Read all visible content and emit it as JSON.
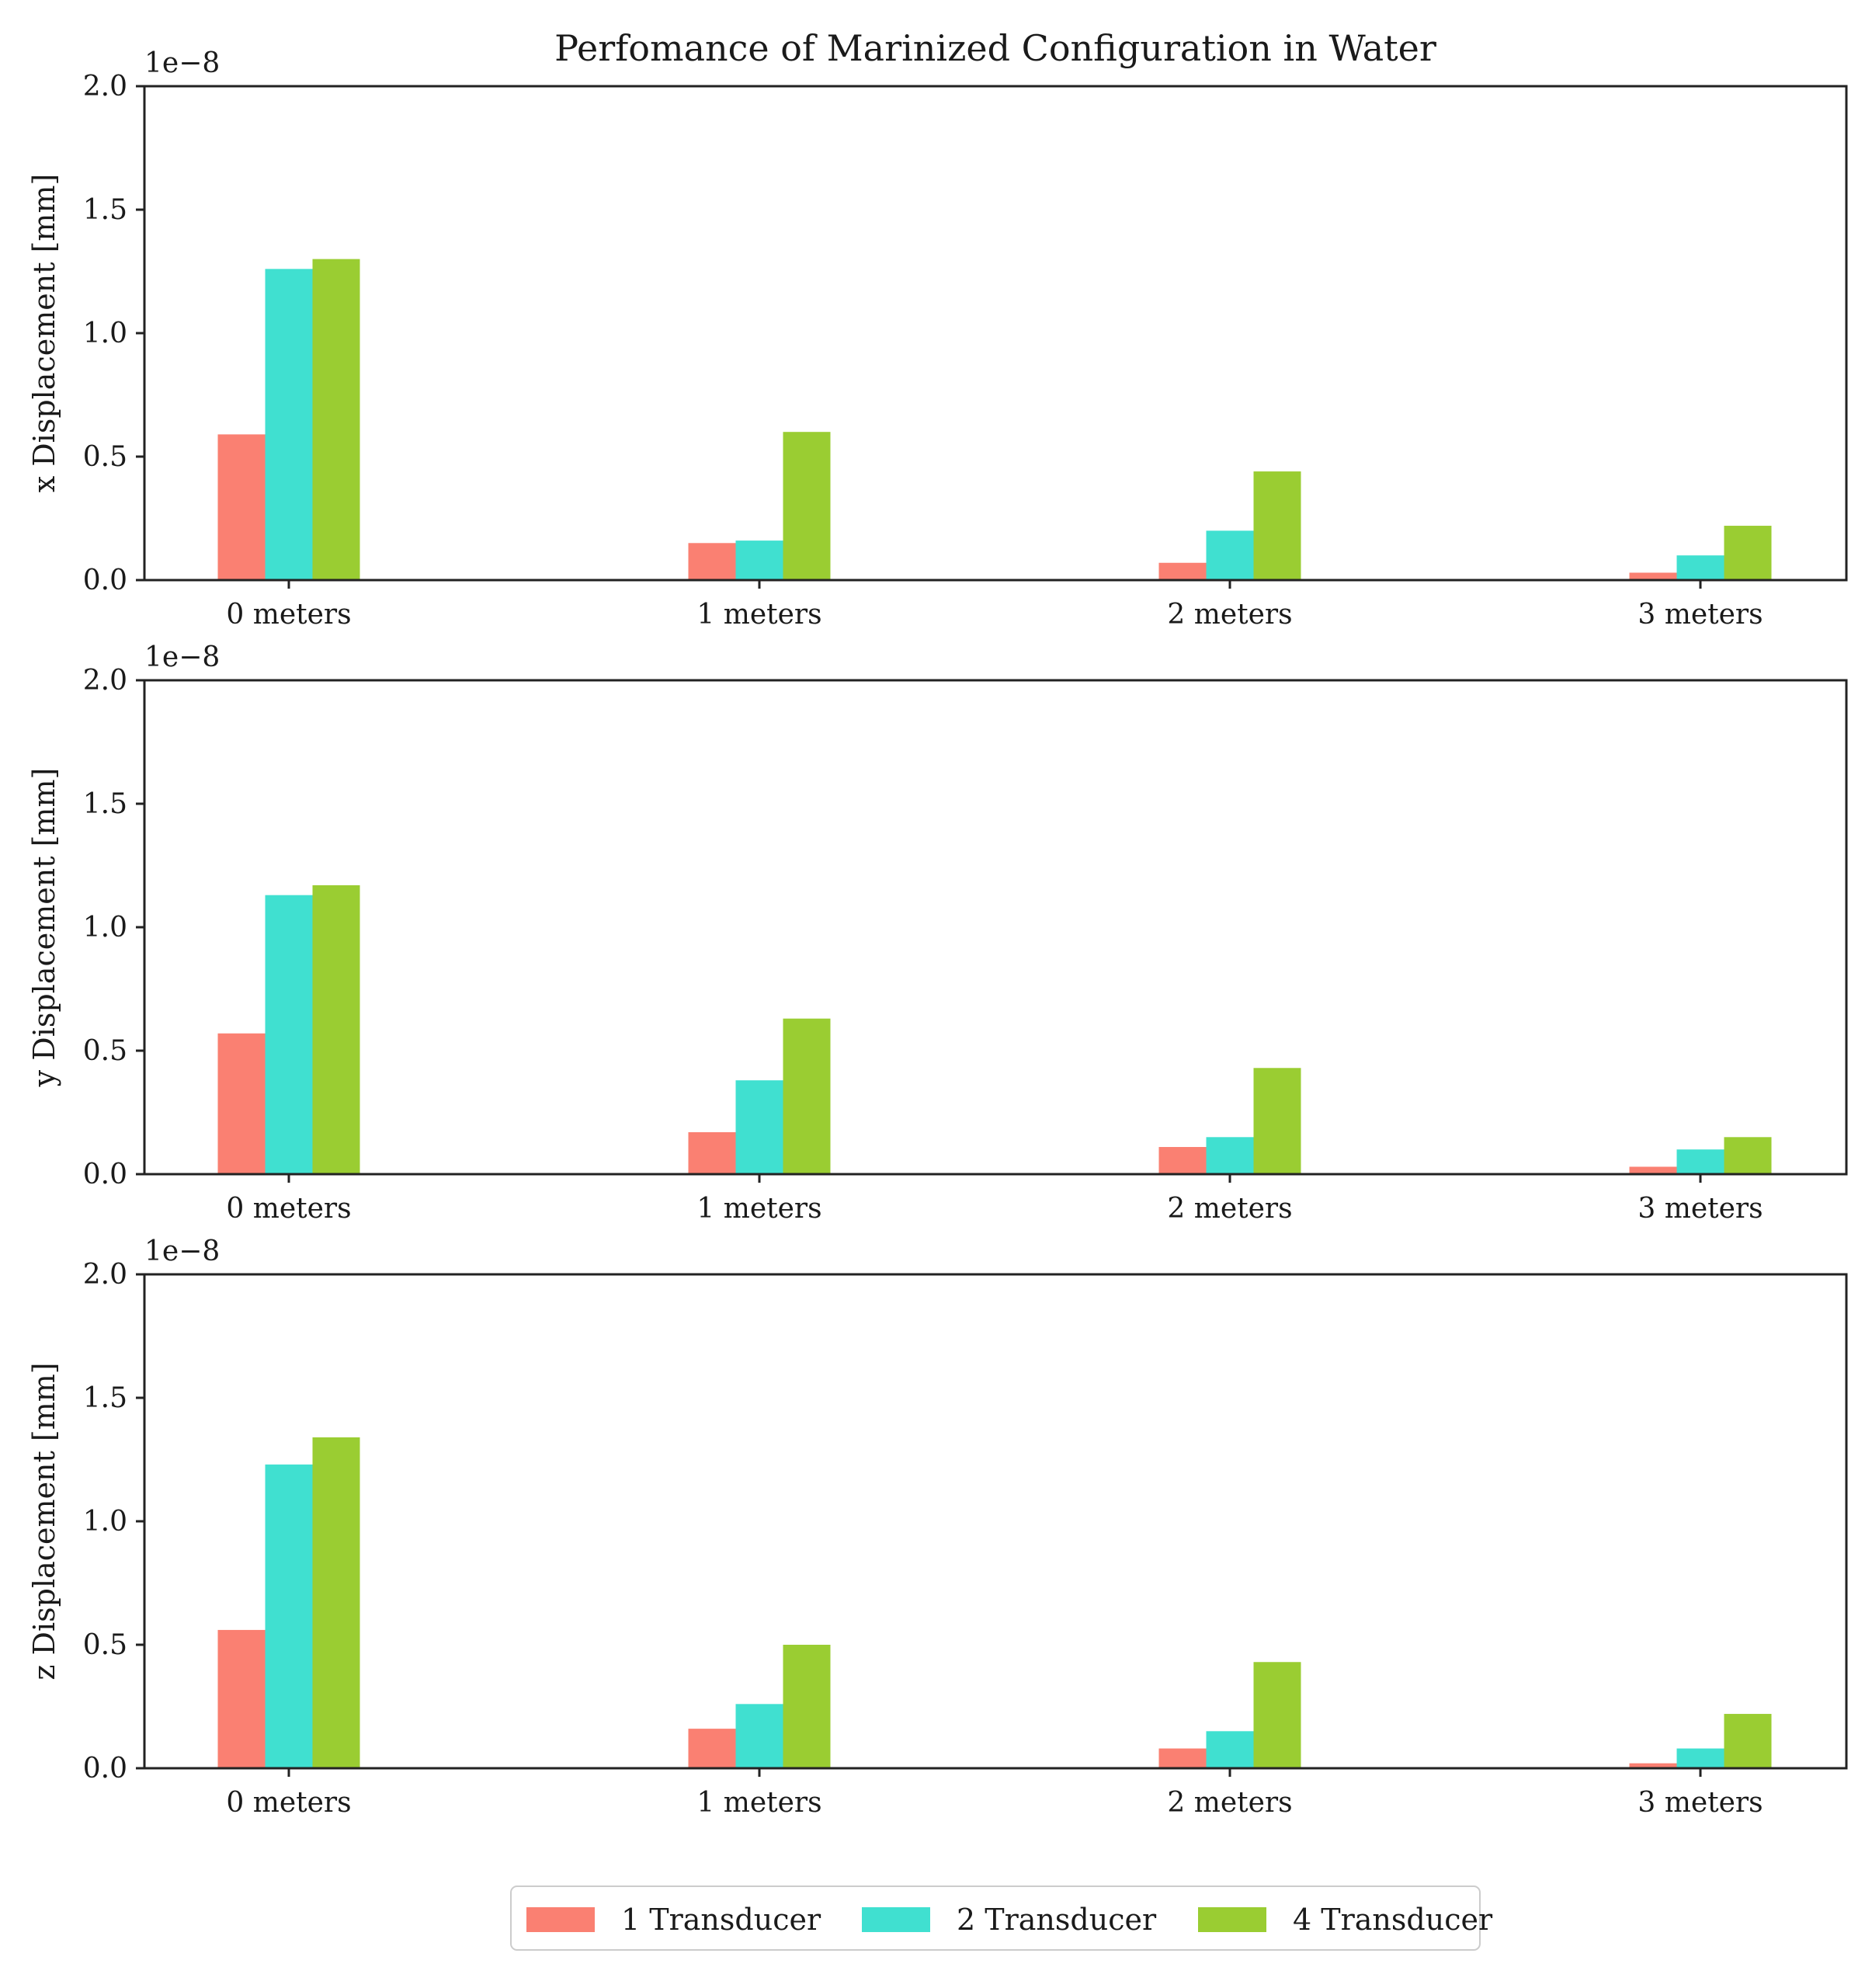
{
  "title": "Perfomance of Marinized Configuration in Water",
  "legend": {
    "location": "bottom-center",
    "entries": [
      {
        "label": "1 Transducer",
        "color": "#fa8072"
      },
      {
        "label": "2 Transducer",
        "color": "#40e0d0"
      },
      {
        "label": "4 Transducer",
        "color": "#9acd32"
      }
    ]
  },
  "chart_data": [
    {
      "type": "bar",
      "title": "Perfomance of Marinized Configuration in Water",
      "xlabel": "",
      "ylabel": "x Displacement [mm]",
      "offset_label": "1e−8",
      "ylim": [
        0,
        2.0
      ],
      "yticks": [
        "0.0",
        "0.5",
        "1.0",
        "1.5",
        "2.0"
      ],
      "categories": [
        "0 meters",
        "1 meters",
        "2 meters",
        "3 meters"
      ],
      "series": [
        {
          "name": "1 Transducer",
          "values": [
            0.59,
            0.15,
            0.07,
            0.03
          ]
        },
        {
          "name": "2 Transducer",
          "values": [
            1.26,
            0.16,
            0.2,
            0.1
          ]
        },
        {
          "name": "4 Transducer",
          "values": [
            1.3,
            0.6,
            0.44,
            0.22
          ]
        }
      ]
    },
    {
      "type": "bar",
      "xlabel": "",
      "ylabel": "y Displacement [mm]",
      "offset_label": "1e−8",
      "ylim": [
        0,
        2.0
      ],
      "yticks": [
        "0.0",
        "0.5",
        "1.0",
        "1.5",
        "2.0"
      ],
      "categories": [
        "0 meters",
        "1 meters",
        "2 meters",
        "3 meters"
      ],
      "series": [
        {
          "name": "1 Transducer",
          "values": [
            0.57,
            0.17,
            0.11,
            0.03
          ]
        },
        {
          "name": "2 Transducer",
          "values": [
            1.13,
            0.38,
            0.15,
            0.1
          ]
        },
        {
          "name": "4 Transducer",
          "values": [
            1.17,
            0.63,
            0.43,
            0.15
          ]
        }
      ]
    },
    {
      "type": "bar",
      "xlabel": "",
      "ylabel": "z Displacement [mm]",
      "offset_label": "1e−8",
      "ylim": [
        0,
        2.0
      ],
      "yticks": [
        "0.0",
        "0.5",
        "1.0",
        "1.5",
        "2.0"
      ],
      "categories": [
        "0 meters",
        "1 meters",
        "2 meters",
        "3 meters"
      ],
      "series": [
        {
          "name": "1 Transducer",
          "values": [
            0.56,
            0.16,
            0.08,
            0.02
          ]
        },
        {
          "name": "2 Transducer",
          "values": [
            1.23,
            0.26,
            0.15,
            0.08
          ]
        },
        {
          "name": "4 Transducer",
          "values": [
            1.34,
            0.5,
            0.43,
            0.22
          ]
        }
      ]
    }
  ]
}
